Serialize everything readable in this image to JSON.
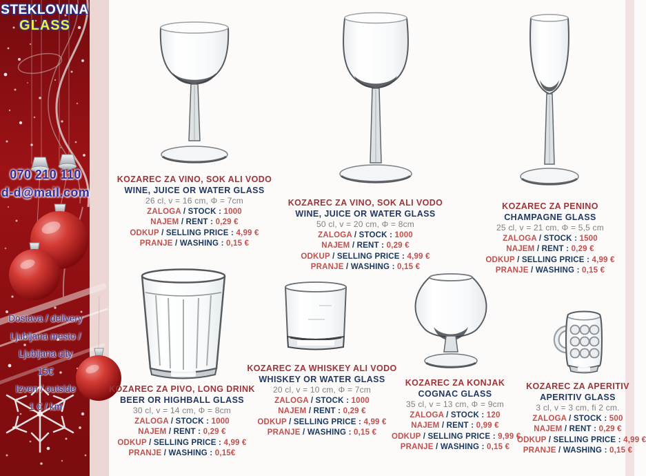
{
  "sidebar": {
    "logo_line1": "STEKLOVINA",
    "logo_line2": "GLASS",
    "phone": "070 210 110",
    "email": "d-d@mail.com",
    "delivery_lines": [
      "Dostava / delivery",
      "Ljubljana mesto /",
      "Ljubljana city",
      "15€",
      "Izven / outside",
      "1 € / km"
    ],
    "colors": {
      "background_red": "#8c1013",
      "strip_pink": "#ecd6d4",
      "logo_yellow": "#f6ec3d",
      "text_navy": "#31319e"
    }
  },
  "labels": {
    "slash": " / ",
    "colon": " : "
  },
  "colors": {
    "label_red": "#c0504d",
    "label_navy": "#17375e",
    "title_red": "#9e3438",
    "title_navy": "#1f3864"
  },
  "products": [
    {
      "glass": "wine-glass-small",
      "name_sl": "KOZAREC ZA VINO, SOK ALI VODO",
      "name_en": "WINE, JUICE OR WATER GLASS",
      "size": "26 cl, v = 16 cm, Φ = 7cm",
      "rows": [
        {
          "sl": "ZALOGA",
          "en": "STOCK",
          "value": "1000"
        },
        {
          "sl": "NAJEM",
          "en": "RENT",
          "value": "0,29 €"
        },
        {
          "sl": "ODKUP",
          "en": "SELLING PRICE",
          "value": "4,99 €"
        },
        {
          "sl": "PRANJE",
          "en": "WASHING",
          "value": "0,15 €"
        }
      ]
    },
    {
      "glass": "wine-glass-large",
      "name_sl": "KOZAREC ZA VINO, SOK ALI VODO",
      "name_en": "WINE, JUICE OR WATER GLASS",
      "size": "50 cl, v = 20 cm, Φ = 8cm",
      "rows": [
        {
          "sl": "ZALOGA",
          "en": "STOCK",
          "value": "1000"
        },
        {
          "sl": "NAJEM",
          "en": "RENT",
          "value": "0,29 €"
        },
        {
          "sl": "ODKUP",
          "en": "SELLING PRICE",
          "value": "4,99 €"
        },
        {
          "sl": "PRANJE",
          "en": "WASHING",
          "value": "0,15 €"
        }
      ]
    },
    {
      "glass": "champagne-flute",
      "name_sl": "KOZAREC ZA PENINO",
      "name_en": "CHAMPAGNE GLASS",
      "size": "25 cl, v = 21 cm, Φ = 5,5 cm",
      "rows": [
        {
          "sl": "ZALOGA",
          "en": "STOCK",
          "value": "1500"
        },
        {
          "sl": "NAJEM",
          "en": "RENT",
          "value": "0,29 €"
        },
        {
          "sl": "ODKUP",
          "en": "SELLING PRICE",
          "value": "4,99 €"
        },
        {
          "sl": "PRANJE",
          "en": "WASHING",
          "value": "0,15 €"
        }
      ]
    },
    {
      "glass": "highball-glass",
      "name_sl": "KOZAREC ZA PIVO, LONG DRINK",
      "name_en": "BEER OR HIGHBALL GLASS",
      "size": "30 cl, v = 14 cm, Φ = 8cm",
      "rows": [
        {
          "sl": "ZALOGA",
          "en": "STOCK",
          "value": "1000"
        },
        {
          "sl": "NAJEM",
          "en": "RENT",
          "value": "0,29 €"
        },
        {
          "sl": "ODKUP",
          "en": "SELLING PRICE",
          "value": "4,99 €"
        },
        {
          "sl": "PRANJE",
          "en": "WASHING",
          "value": "0,15€"
        }
      ]
    },
    {
      "glass": "whiskey-tumbler",
      "name_sl": "KOZAREC ZA WHISKEY ALI VODO",
      "name_en": "WHISKEY OR WATER GLASS",
      "size": "20 cl, v = 10 cm, Φ = 7cm",
      "rows": [
        {
          "sl": "ZALOGA",
          "en": "STOCK",
          "value": "1000"
        },
        {
          "sl": "NAJEM",
          "en": "RENT",
          "value": "0,29 €"
        },
        {
          "sl": "ODKUP",
          "en": "SELLING PRICE",
          "value": "4,99 €"
        },
        {
          "sl": "PRANJE",
          "en": "WASHING",
          "value": "0,15 €"
        }
      ]
    },
    {
      "glass": "cognac-snifter",
      "name_sl": "KOZAREC ZA KONJAK",
      "name_en": "COGNAC GLASS",
      "size": "35 cl, v = 13 cm, Φ = 9cm",
      "rows": [
        {
          "sl": "ZALOGA",
          "en": "STOCK",
          "value": "120"
        },
        {
          "sl": "NAJEM",
          "en": "RENT",
          "value": "0,99 €"
        },
        {
          "sl": "ODKUP",
          "en": "SELLING PRICE",
          "value": "9,99 €"
        },
        {
          "sl": "PRANJE",
          "en": "WASHING",
          "value": "0,15 €"
        }
      ]
    },
    {
      "glass": "aperitif-mug",
      "name_sl": "KOZAREC ZA APERITIV",
      "name_en": "APERITIV GLASS",
      "size": "3 cl, v = 3 cm, fi 2 cm.",
      "rows": [
        {
          "sl": "ZALOGA",
          "en": "STOCK",
          "value": "500"
        },
        {
          "sl": "NAJEM",
          "en": "RENT",
          "value": "0,29 €"
        },
        {
          "sl": "ODKUP",
          "en": "SELLING PRICE",
          "value": "4,99 €"
        },
        {
          "sl": "PRANJE",
          "en": "WASHING",
          "value": "0,15 €"
        }
      ]
    }
  ]
}
